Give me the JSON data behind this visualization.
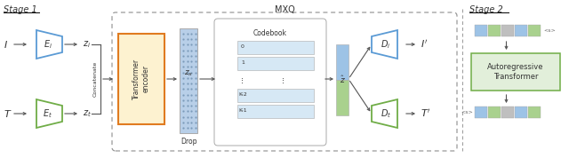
{
  "stage1_label": "Stage 1",
  "stage2_label": "Stage 2",
  "mxq_label": "MXQ",
  "transformer_label": "Transformer\nencoder",
  "autoregressive_label": "Autoregressive\nTransformer",
  "codebook_label": "Codebook",
  "drop_label": "Drop",
  "concatenate_label": "Concatenate",
  "codebook_rows": [
    "0",
    "1",
    "⋮",
    "K-2",
    "K-1"
  ],
  "image_encoder_color": "#5b9bd5",
  "text_encoder_color": "#70ad47",
  "image_decoder_color": "#5b9bd5",
  "text_decoder_color": "#70ad47",
  "transformer_fill": "#fdf2d0",
  "transformer_edge": "#e07b20",
  "autoregressive_fill": "#e2efda",
  "autoregressive_edge": "#70ad47",
  "seq_colors_top": [
    "#9dc3e6",
    "#a9d18e",
    "#bfbfbf",
    "#9dc3e6",
    "#a9d18e"
  ],
  "seq_colors_bot": [
    "#9dc3e6",
    "#a9d18e",
    "#bfbfbf",
    "#9dc3e6",
    "#a9d18e"
  ],
  "zhat_blue": "#9dc3e6",
  "zhat_green": "#a9d18e",
  "codebook_fill_light": "#d6e8f5",
  "codebook_fill_dark": "#b8d4eb",
  "zx_fill": "#b8cfe8",
  "arrow_color": "#555555",
  "text_color": "#333333",
  "dashed_color": "#999999",
  "bg_color": "#ffffff"
}
